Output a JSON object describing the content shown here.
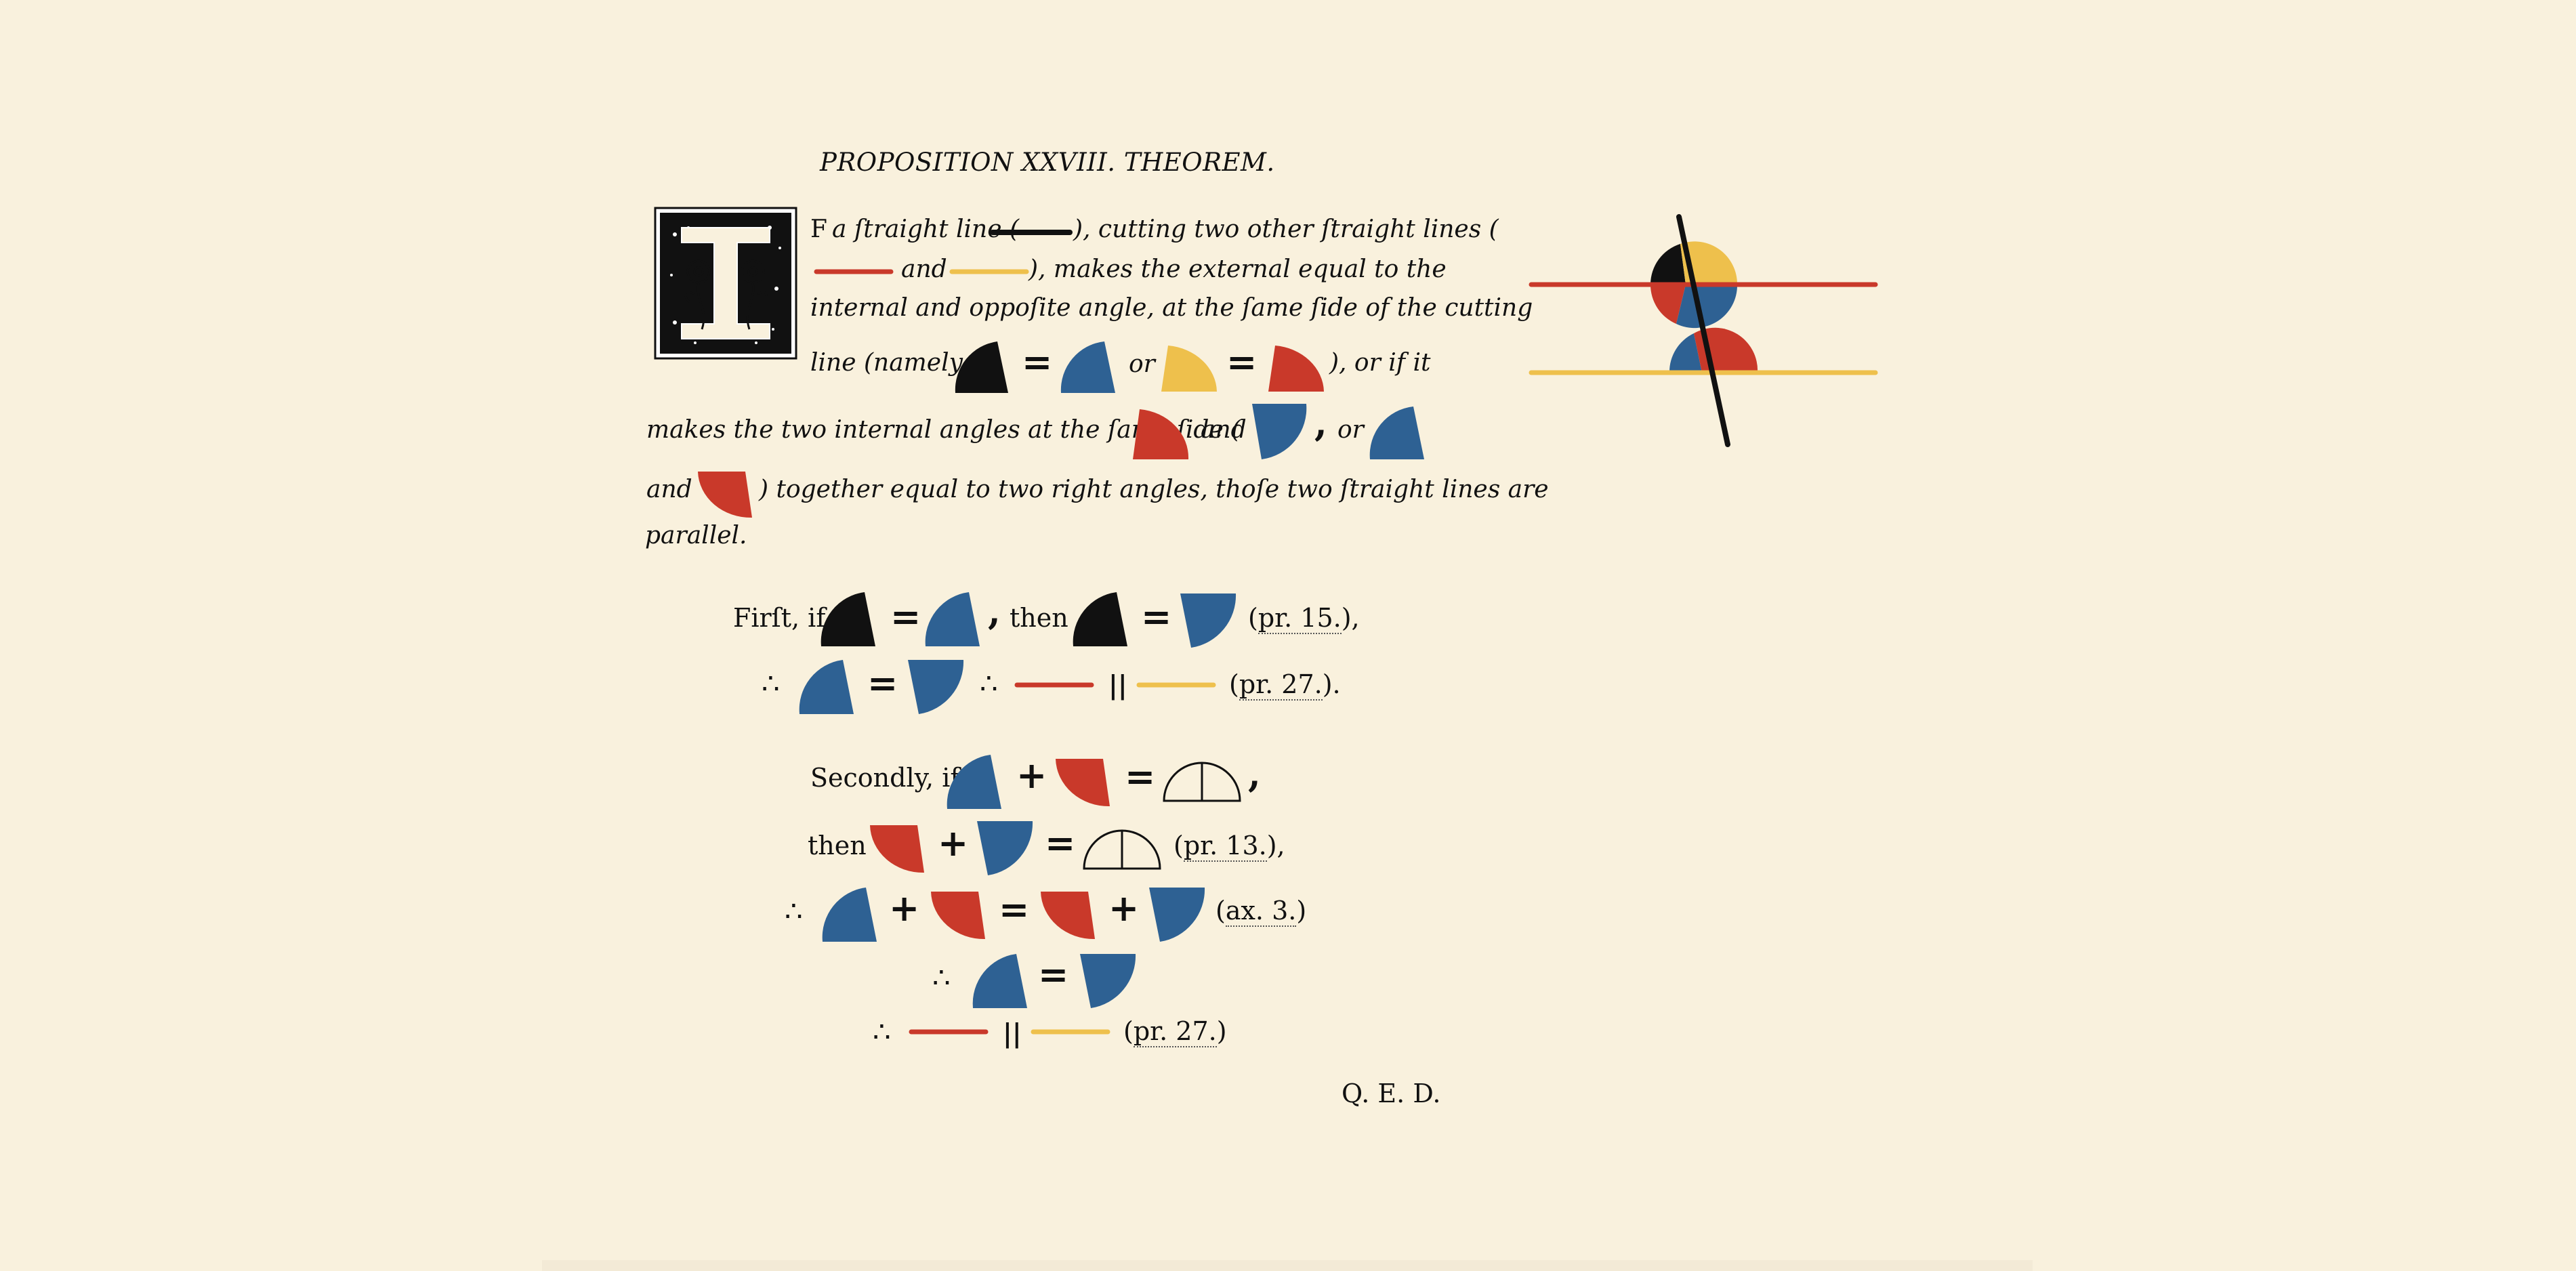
{
  "title": "PROPOSITION XXVIII. THEOREM.",
  "colors": {
    "background": "#f9f1dd",
    "black": "#111111",
    "red": "#c9392a",
    "blue": "#2e6193",
    "yellow": "#eec04c"
  },
  "icons": {
    "drop_cap": "ornamental-letter-I-icon"
  },
  "statement": {
    "l1_a": "F",
    "l1_b": "a ſtraight line (",
    "l1_c": "), cutting two other ſtraight lines (",
    "l2_and": "and",
    "l2_c": "), makes the external equal to the",
    "l3": "internal and oppoſite angle, at the ſame ſide of the cutting",
    "l4_a": "line (namely,",
    "eq": "=",
    "or": "or",
    "l4_end": "), or if it",
    "l5_a": "makes the two internal angles at the ſame ſide (",
    "l5_and": "and",
    "comma": ",",
    "l5_or": "or",
    "l6_and": "and",
    "l6_rest": ") together equal to two right angles, thoſe two ſtraight lines are",
    "l7": "parallel."
  },
  "proof": {
    "first_if": "Firſt, if",
    "then": "then",
    "therefore": "∴",
    "eq": "=",
    "plus": "+",
    "comma": ",",
    "parallel": "||",
    "secondly_if": "Secondly, if",
    "ref_pr15": "pr. 15.",
    "ref_pr27": "pr. 27.",
    "ref_pr13": "pr. 13.",
    "ref_ax3": "ax. 3.",
    "open_paren": "(",
    "close_paren_comma": "),",
    "close_paren_period": ").",
    "close_paren": ")"
  },
  "qed": "Q. E. D."
}
